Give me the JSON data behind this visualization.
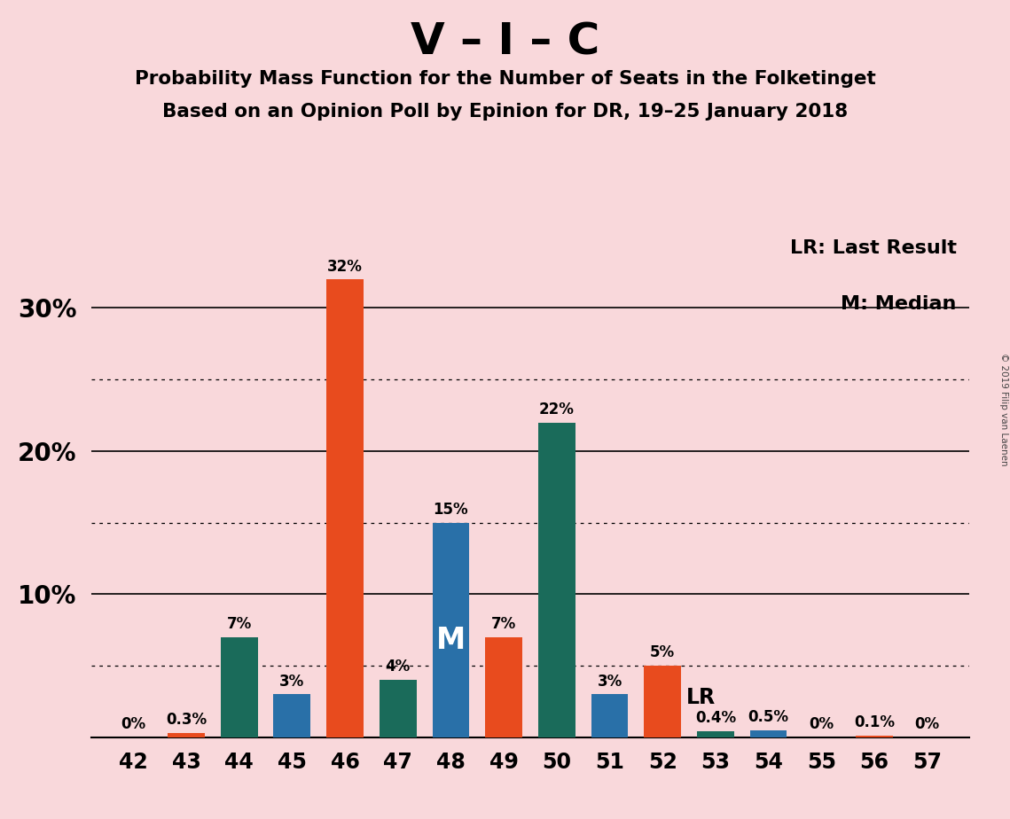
{
  "title_main": "V – I – C",
  "subtitle1": "Probability Mass Function for the Number of Seats in the Folketinget",
  "subtitle2": "Based on an Opinion Poll by Epinion for DR, 19–25 January 2018",
  "copyright": "© 2019 Filip van Laenen",
  "legend_lr": "LR: Last Result",
  "legend_m": "M: Median",
  "seats": [
    42,
    43,
    44,
    45,
    46,
    47,
    48,
    49,
    50,
    51,
    52,
    53,
    54,
    55,
    56,
    57
  ],
  "values": [
    0.0,
    0.3,
    7.0,
    3.0,
    32.0,
    4.0,
    15.0,
    7.0,
    22.0,
    3.0,
    5.0,
    0.4,
    0.5,
    0.0,
    0.1,
    0.0
  ],
  "labels": [
    "0%",
    "0.3%",
    "7%",
    "3%",
    "32%",
    "4%",
    "15%",
    "7%",
    "22%",
    "3%",
    "5%",
    "0.4%",
    "0.5%",
    "0%",
    "0.1%",
    "0%"
  ],
  "colors": [
    "#2970a8",
    "#e84b1e",
    "#1a6b5a",
    "#2970a8",
    "#e84b1e",
    "#1a6b5a",
    "#2970a8",
    "#e84b1e",
    "#1a6b5a",
    "#2970a8",
    "#e84b1e",
    "#1a6b5a",
    "#2970a8",
    "#2970a8",
    "#e84b1e",
    "#1a6b5a"
  ],
  "median_seat": 48,
  "lr_seat": 52,
  "background_color": "#f9d8db",
  "dotted_lines": [
    5.0,
    15.0,
    25.0
  ],
  "solid_lines": [
    10.0,
    20.0,
    30.0
  ]
}
